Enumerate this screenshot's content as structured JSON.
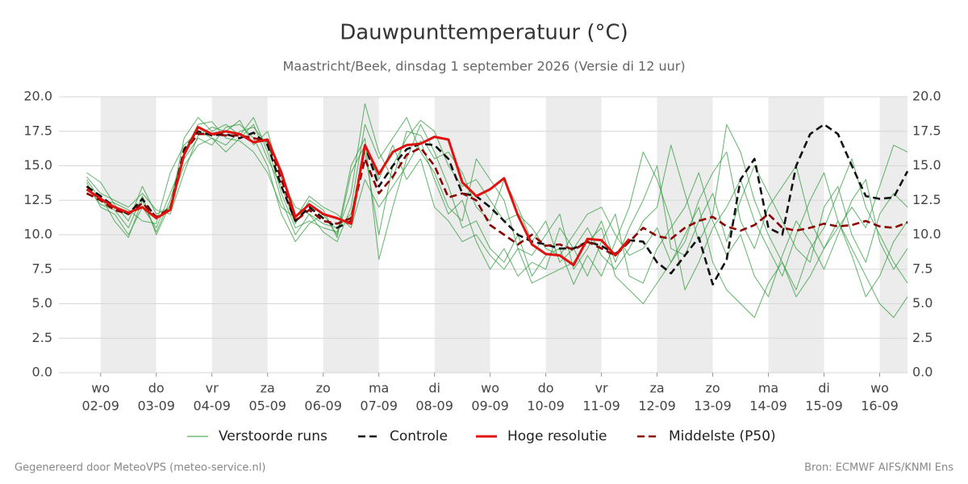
{
  "chart_data": {
    "type": "line",
    "title": "Dauwpunttemperatuur (°C)",
    "subtitle": "Maastricht/Beek, dinsdag  1 september 2026 (Versie di 12 uur)",
    "footer_left": "Gegenereerd door MeteoVPS (meteo-service.nl)",
    "footer_right": "Bron: ECMWF AIFS/KNMI Ens",
    "x": [
      "2026-09-01T18:00",
      "2026-09-02T00:00",
      "2026-09-02T06:00",
      "2026-09-02T12:00",
      "2026-09-02T18:00",
      "2026-09-03T00:00",
      "2026-09-03T06:00",
      "2026-09-03T12:00",
      "2026-09-03T18:00",
      "2026-09-04T00:00",
      "2026-09-04T06:00",
      "2026-09-04T12:00",
      "2026-09-04T18:00",
      "2026-09-05T00:00",
      "2026-09-05T06:00",
      "2026-09-05T12:00",
      "2026-09-05T18:00",
      "2026-09-06T00:00",
      "2026-09-06T06:00",
      "2026-09-06T12:00",
      "2026-09-06T18:00",
      "2026-09-07T00:00",
      "2026-09-07T06:00",
      "2026-09-07T12:00",
      "2026-09-07T18:00",
      "2026-09-08T00:00",
      "2026-09-08T06:00",
      "2026-09-08T12:00",
      "2026-09-08T18:00",
      "2026-09-09T00:00",
      "2026-09-09T06:00",
      "2026-09-09T12:00",
      "2026-09-09T18:00",
      "2026-09-10T00:00",
      "2026-09-10T06:00",
      "2026-09-10T12:00",
      "2026-09-10T18:00",
      "2026-09-11T00:00",
      "2026-09-11T06:00",
      "2026-09-11T12:00",
      "2026-09-11T18:00",
      "2026-09-12T00:00",
      "2026-09-12T06:00",
      "2026-09-12T12:00",
      "2026-09-12T18:00",
      "2026-09-13T00:00",
      "2026-09-13T06:00",
      "2026-09-13T12:00",
      "2026-09-13T18:00",
      "2026-09-14T00:00",
      "2026-09-14T06:00",
      "2026-09-14T12:00",
      "2026-09-14T18:00",
      "2026-09-15T00:00",
      "2026-09-15T06:00",
      "2026-09-15T12:00",
      "2026-09-15T18:00",
      "2026-09-16T00:00",
      "2026-09-16T06:00",
      "2026-09-16T12:00"
    ],
    "xlim": [
      "2026-09-01T06:00",
      "2026-09-16T12:00"
    ],
    "xticks": [
      {
        "value": "2026-09-02T00:00",
        "label": [
          "wo",
          "02-09"
        ]
      },
      {
        "value": "2026-09-03T00:00",
        "label": [
          "do",
          "03-09"
        ]
      },
      {
        "value": "2026-09-04T00:00",
        "label": [
          "vr",
          "04-09"
        ]
      },
      {
        "value": "2026-09-05T00:00",
        "label": [
          "za",
          "05-09"
        ]
      },
      {
        "value": "2026-09-06T00:00",
        "label": [
          "zo",
          "06-09"
        ]
      },
      {
        "value": "2026-09-07T00:00",
        "label": [
          "ma",
          "07-09"
        ]
      },
      {
        "value": "2026-09-08T00:00",
        "label": [
          "di",
          "08-09"
        ]
      },
      {
        "value": "2026-09-09T00:00",
        "label": [
          "wo",
          "09-09"
        ]
      },
      {
        "value": "2026-09-10T00:00",
        "label": [
          "do",
          "10-09"
        ]
      },
      {
        "value": "2026-09-11T00:00",
        "label": [
          "vr",
          "11-09"
        ]
      },
      {
        "value": "2026-09-12T00:00",
        "label": [
          "za",
          "12-09"
        ]
      },
      {
        "value": "2026-09-13T00:00",
        "label": [
          "zo",
          "13-09"
        ]
      },
      {
        "value": "2026-09-14T00:00",
        "label": [
          "ma",
          "14-09"
        ]
      },
      {
        "value": "2026-09-15T00:00",
        "label": [
          "di",
          "15-09"
        ]
      },
      {
        "value": "2026-09-16T00:00",
        "label": [
          "wo",
          "16-09"
        ]
      }
    ],
    "ylim": [
      0,
      20
    ],
    "yticks": [
      {
        "value": 0,
        "label": "0.0"
      },
      {
        "value": 2.5,
        "label": "2.5"
      },
      {
        "value": 5,
        "label": "5.0"
      },
      {
        "value": 7.5,
        "label": "7.5"
      },
      {
        "value": 10,
        "label": "10.0"
      },
      {
        "value": 12.5,
        "label": "12.5"
      },
      {
        "value": 15,
        "label": "15.0"
      },
      {
        "value": 17.5,
        "label": "17.5"
      },
      {
        "value": 20,
        "label": "20.0"
      }
    ],
    "grid": true,
    "ensemble": {
      "name": "Verstoorde runs",
      "color": "#2e9a3a",
      "members": [
        [
          14.5,
          13.8,
          12.2,
          11.0,
          13.5,
          11.5,
          12.0,
          17.0,
          18.5,
          17.5,
          18.0,
          17.2,
          18.5,
          16.0,
          12.5,
          10.0,
          11.5,
          10.2,
          9.5,
          12.0,
          18.0,
          15.5,
          17.0,
          18.5,
          16.0,
          14.5,
          12.0,
          11.0,
          15.5,
          14.0,
          12.5,
          9.0,
          8.5,
          10.0,
          11.5,
          7.5,
          9.0,
          11.0,
          8.0,
          10.5,
          12.5,
          15.0,
          9.0,
          8.5,
          11.0,
          13.0,
          9.5,
          12.5,
          15.0,
          13.0,
          11.0,
          9.0,
          8.0,
          12.0,
          13.5,
          10.0,
          8.0,
          11.5,
          13.0,
          12.0
        ],
        [
          13.8,
          12.0,
          11.5,
          10.0,
          12.0,
          10.5,
          13.0,
          15.5,
          17.0,
          16.5,
          17.8,
          18.0,
          17.0,
          15.0,
          11.5,
          9.5,
          10.8,
          11.5,
          10.0,
          15.0,
          17.0,
          8.2,
          12.0,
          15.5,
          18.0,
          16.0,
          13.5,
          10.5,
          11.0,
          9.0,
          8.0,
          10.0,
          7.0,
          8.5,
          9.0,
          6.4,
          8.5,
          7.0,
          9.5,
          12.0,
          16.0,
          14.0,
          11.0,
          6.0,
          8.0,
          10.5,
          12.0,
          14.0,
          11.0,
          9.0,
          7.0,
          10.0,
          12.5,
          14.5,
          11.0,
          8.5,
          5.5,
          7.0,
          9.5,
          11.0
        ],
        [
          14.0,
          12.5,
          12.3,
          11.8,
          11.0,
          10.8,
          14.5,
          16.5,
          17.5,
          17.0,
          16.5,
          17.5,
          17.8,
          16.5,
          13.0,
          10.5,
          11.0,
          10.5,
          10.2,
          13.0,
          19.5,
          16.0,
          14.0,
          17.5,
          17.2,
          15.5,
          16.0,
          14.5,
          12.0,
          11.0,
          14.0,
          12.0,
          9.5,
          11.0,
          8.0,
          9.0,
          10.5,
          8.5,
          7.5,
          9.0,
          11.0,
          12.0,
          16.5,
          13.0,
          9.5,
          11.5,
          18.0,
          16.0,
          12.5,
          10.0,
          8.0,
          6.0,
          9.0,
          10.5,
          13.0,
          15.5,
          12.0,
          10.0,
          8.0,
          6.5
        ],
        [
          13.2,
          12.8,
          11.0,
          9.8,
          12.5,
          10.2,
          12.5,
          16.0,
          18.0,
          18.2,
          17.0,
          16.8,
          16.0,
          14.5,
          12.0,
          11.2,
          12.8,
          12.0,
          11.5,
          10.5,
          14.0,
          12.0,
          13.5,
          15.0,
          16.8,
          14.0,
          11.5,
          12.5,
          9.5,
          7.5,
          9.0,
          7.0,
          8.0,
          7.5,
          10.5,
          9.0,
          7.0,
          9.5,
          11.5,
          7.0,
          6.5,
          9.0,
          10.5,
          12.0,
          14.5,
          11.0,
          8.5,
          10.0,
          7.0,
          5.5,
          8.5,
          11.0,
          9.5,
          7.5,
          10.0,
          12.5,
          14.0,
          9.5,
          7.5,
          9.0
        ],
        [
          14.2,
          13.0,
          12.5,
          12.0,
          13.0,
          11.8,
          11.5,
          14.5,
          17.2,
          17.8,
          17.5,
          18.3,
          16.5,
          17.5,
          14.0,
          12.0,
          11.5,
          10.8,
          10.5,
          11.5,
          16.0,
          10.0,
          15.0,
          17.0,
          18.3,
          17.5,
          15.0,
          13.5,
          14.0,
          12.5,
          11.0,
          11.5,
          10.5,
          9.0,
          8.5,
          10.0,
          11.5,
          12.0,
          10.0,
          8.5,
          9.0,
          10.5,
          8.0,
          9.5,
          12.5,
          14.5,
          16.0,
          11.0,
          9.0,
          12.0,
          13.5,
          15.0,
          11.0,
          9.0,
          10.5,
          12.0,
          10.5,
          13.5,
          16.5,
          16.0
        ],
        [
          13.5,
          12.2,
          11.8,
          10.5,
          12.8,
          10.0,
          12.2,
          15.0,
          16.5,
          17.0,
          16.0,
          17.0,
          18.0,
          15.5,
          13.5,
          10.8,
          12.5,
          11.8,
          9.8,
          14.5,
          16.5,
          14.0,
          16.5,
          14.0,
          15.5,
          12.0,
          11.0,
          9.5,
          10.0,
          8.5,
          7.5,
          9.0,
          6.5,
          7.0,
          7.5,
          8.0,
          9.5,
          10.5,
          7.0,
          6.0,
          5.0,
          6.5,
          8.0,
          10.0,
          12.0,
          8.0,
          6.0,
          5.0,
          4.0,
          6.5,
          8.0,
          5.5,
          7.0,
          9.0,
          11.0,
          9.0,
          7.0,
          5.0,
          4.0,
          5.5
        ]
      ]
    },
    "series": [
      {
        "name": "Controle",
        "color": "#111111",
        "dashed": true,
        "values": [
          13.5,
          12.8,
          12.0,
          11.5,
          12.6,
          11.2,
          11.8,
          16.2,
          17.5,
          17.2,
          17.3,
          17.0,
          17.4,
          16.5,
          13.5,
          11.0,
          12.0,
          11.2,
          10.5,
          11.0,
          16.5,
          13.5,
          15.0,
          16.2,
          16.6,
          16.5,
          15.5,
          13.0,
          12.8,
          12.0,
          11.0,
          10.0,
          9.5,
          9.3,
          9.0,
          9.0,
          9.5,
          9.2,
          8.6,
          9.6,
          9.5,
          8.0,
          7.2,
          8.5,
          9.8,
          6.4,
          8.2,
          14.0,
          15.5,
          10.5,
          10.0,
          15.0,
          17.3,
          18.0,
          17.3,
          15.0,
          12.8,
          12.6,
          12.7,
          14.6
        ]
      },
      {
        "name": "Middelste (P50)",
        "color": "#8b0000",
        "dashed": true,
        "values": [
          13.0,
          12.5,
          11.8,
          11.5,
          12.3,
          11.3,
          11.9,
          16.0,
          17.3,
          17.3,
          17.2,
          17.2,
          17.0,
          16.8,
          14.0,
          11.0,
          11.8,
          11.0,
          10.8,
          11.2,
          15.5,
          13.0,
          14.2,
          15.8,
          16.3,
          15.0,
          12.7,
          13.0,
          12.5,
          10.7,
          10.0,
          9.3,
          10.0,
          9.2,
          9.3,
          8.9,
          9.5,
          9.0,
          8.5,
          9.5,
          10.5,
          9.9,
          9.7,
          10.5,
          11.0,
          11.3,
          10.6,
          10.3,
          10.7,
          11.5,
          10.5,
          10.3,
          10.5,
          10.8,
          10.6,
          10.7,
          11.0,
          10.6,
          10.5,
          10.9
        ]
      },
      {
        "name": "Hoge resolutie",
        "color": "#e0120f",
        "dashed": false,
        "values": [
          13.3,
          12.6,
          12.0,
          11.6,
          12.0,
          11.2,
          11.8,
          15.8,
          17.8,
          17.3,
          17.5,
          17.3,
          16.7,
          16.9,
          14.5,
          11.3,
          12.2,
          11.5,
          11.2,
          10.8,
          16.5,
          14.4,
          16.0,
          16.5,
          16.6,
          17.1,
          16.9,
          13.8,
          12.8,
          13.3,
          14.1,
          11.4,
          9.3,
          8.6,
          8.5,
          7.8,
          9.7,
          9.6,
          8.5,
          9.7,
          null,
          null,
          null,
          null,
          null,
          null,
          null,
          null,
          null,
          null,
          null,
          null,
          null,
          null,
          null,
          null,
          null,
          null,
          null,
          null
        ]
      }
    ]
  }
}
